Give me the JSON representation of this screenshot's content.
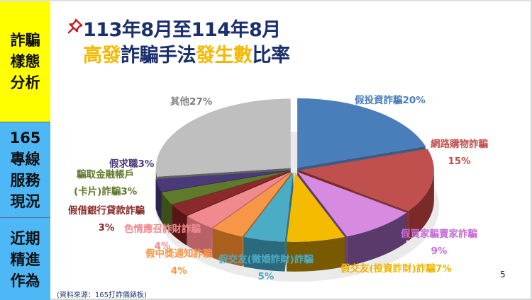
{
  "sidebar": {
    "sections": [
      {
        "lines": [
          "詐騙",
          "樣態",
          "分析"
        ],
        "color": "#ffff00",
        "active": true
      },
      {
        "lines": [
          "165",
          "專線",
          "服務",
          "現況"
        ],
        "color": "#4db8f5",
        "active": false
      },
      {
        "lines": [
          "近期",
          "精進",
          "作為"
        ],
        "color": "#4db8f5",
        "active": false
      }
    ]
  },
  "title": {
    "icon": "pushpin-icon",
    "line1": "113年8月至114年8月",
    "line2_parts": [
      {
        "text": "高發",
        "color": "#f5b800"
      },
      {
        "text": "詐騙手法",
        "color": "#1a2f6b"
      },
      {
        "text": "發生數",
        "color": "#f5b800"
      },
      {
        "text": "比率",
        "color": "#1a2f6b"
      }
    ]
  },
  "chart_data": {
    "type": "pie",
    "style": "3d-exploded",
    "title": "113年8月至114年8月 高發詐騙手法發生數比率",
    "categories": [
      "假投資詐騙",
      "網路購物詐騙",
      "假買家騙賣家詐騙",
      "假交友(投資詐財)詐騙",
      "假交友(徵婚詐財)詐騙",
      "假中獎通知詐騙",
      "色情應召詐財詐騙",
      "假借銀行貸款詐騙",
      "騙取金融帳戶(卡片)詐騙",
      "假求職",
      "其他"
    ],
    "values": [
      20,
      15,
      9,
      7,
      5,
      4,
      4,
      3,
      3,
      3,
      27
    ],
    "unit": "%",
    "colors": [
      "#4a7ebb",
      "#c0504d",
      "#d68be0",
      "#f5bb00",
      "#4bacc6",
      "#f79646",
      "#f08a8f",
      "#8b2a2a",
      "#5f7a2a",
      "#4b3a7a",
      "#bfbfbf"
    ],
    "side_colors": [
      "#2e5583",
      "#7a2a28",
      "#5a3a6a",
      "#7a5a00",
      "#2b6a7c",
      "#a9601f",
      "#b76167",
      "#5a1515",
      "#3c4f18",
      "#2e2350",
      "#5a5a5a"
    ],
    "labels": [
      {
        "text": "假投資詐騙20%",
        "color": "#4a7ebb"
      },
      {
        "text": "網路購物詐騙\n15%",
        "color": "#c0504d"
      },
      {
        "text": "假買家騙賣家詐騙\n9%",
        "color": "#c46fd6"
      },
      {
        "text": "假交友(投資詐財)詐騙7%",
        "color": "#f0b400"
      },
      {
        "text": "假交友(徵婚詐財)詐騙\n5%",
        "color": "#4bacc6"
      },
      {
        "text": "假中獎通知詐騙\n4%",
        "color": "#f79646"
      },
      {
        "text": "色情應召詐財詐騙\n4%",
        "color": "#f08a8f"
      },
      {
        "text": "假借銀行貸款詐騙\n3%",
        "color": "#8b2a2a"
      },
      {
        "text": "騙取金融帳戶\n(卡片)詐騙3%",
        "color": "#5f7a2a"
      },
      {
        "text": "假求職3%",
        "color": "#4b3a7a"
      },
      {
        "text": "其他27%",
        "color": "#7f7f7f"
      }
    ],
    "start_angle": "12 o'clock",
    "direction": "clockwise",
    "legend": "none (data labels)"
  },
  "footer": {
    "source": "(資料來源：165打詐儀錶板)",
    "page_number": "5"
  }
}
